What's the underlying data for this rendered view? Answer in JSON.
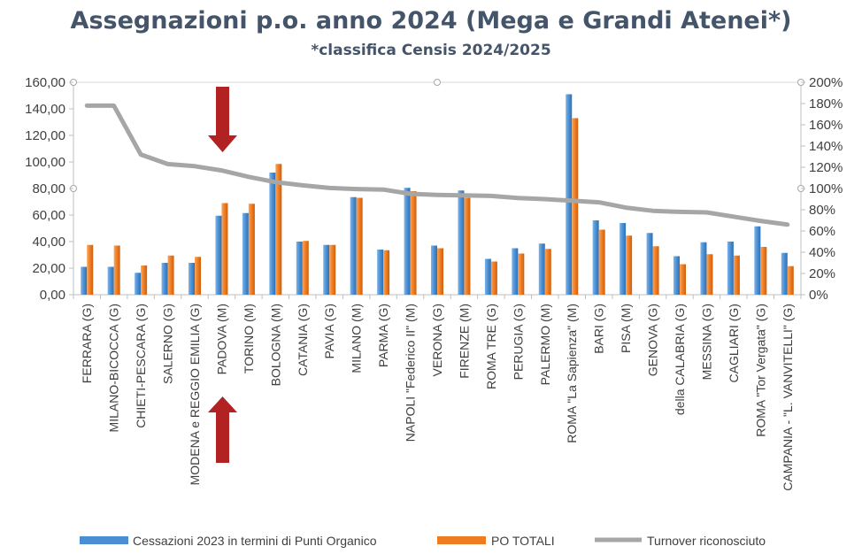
{
  "chart_data": {
    "type": "bar",
    "title": "Assegnazioni p.o. anno 2024 (Mega e Grandi Atenei*)",
    "subtitle": "*classifica Censis 2024/2025",
    "categories": [
      "FERRARA (G)",
      "MILANO-BICOCCA (G)",
      "CHIETI-PESCARA (G)",
      "SALERNO (G)",
      "MODENA e REGGIO EMILIA (G)",
      "PADOVA (M)",
      "TORINO (M)",
      "BOLOGNA (M)",
      "CATANIA (G)",
      "PAVIA (G)",
      "MILANO (M)",
      "PARMA (G)",
      "NAPOLI \"Federico II\" (M)",
      "VERONA (G)",
      "FIRENZE (M)",
      "ROMA TRE (G)",
      "PERUGIA (G)",
      "PALERMO (M)",
      "ROMA \"La Sapienza\" (M)",
      "BARI (G)",
      "PISA (M)",
      "GENOVA (G)",
      "della CALABRIA (G)",
      "MESSINA (G)",
      "CAGLIARI (G)",
      "ROMA \"Tor Vergata\" (G)",
      "CAMPANIA - \"L. VANVITELLI\" (G)"
    ],
    "series": [
      {
        "name": "Cessazioni 2023 in termini di Punti Organico",
        "axis": "left",
        "kind": "bar",
        "color": "#4a8fd4",
        "values": [
          21,
          21,
          16.5,
          24,
          24,
          59.5,
          61.5,
          92,
          40,
          37.5,
          73.5,
          34,
          80.5,
          37,
          78.5,
          27,
          35,
          38.5,
          151,
          56,
          54,
          46.5,
          29,
          39.5,
          40,
          51.5,
          31.5
        ]
      },
      {
        "name": "PO TOTALI",
        "axis": "left",
        "kind": "bar",
        "color": "#f07c22",
        "values": [
          37.5,
          37,
          22,
          29.5,
          28.5,
          69,
          68.5,
          98.5,
          40.5,
          37.5,
          73,
          33.5,
          78,
          35,
          73,
          25,
          31,
          34.5,
          133,
          49,
          44.5,
          36.5,
          23,
          30.5,
          29.5,
          36,
          21.5
        ]
      },
      {
        "name": "Turnover riconosciuto",
        "axis": "right",
        "kind": "line",
        "color": "#a6a6a6",
        "values": [
          178,
          178,
          132,
          123,
          121,
          117,
          111,
          106,
          103,
          100.5,
          99.5,
          99,
          95,
          94,
          93.5,
          93,
          91,
          90,
          88.5,
          87,
          82,
          79,
          78,
          77.5,
          73.5,
          69.5,
          66
        ]
      }
    ],
    "y_left": {
      "min": 0,
      "max": 160,
      "step": 20
    },
    "y_right": {
      "min": 0,
      "max": 200,
      "step": 20
    },
    "grid": false,
    "legend_position": "bottom"
  },
  "annotations": {
    "arrow_color": "#b22222"
  }
}
